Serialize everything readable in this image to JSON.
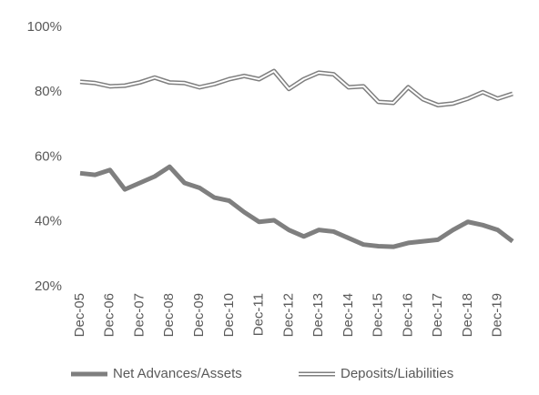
{
  "chart_data": {
    "type": "line",
    "categories": [
      "Dec-05",
      null,
      "Dec-06",
      null,
      "Dec-07",
      null,
      "Dec-08",
      null,
      "Dec-09",
      null,
      "Dec-10",
      null,
      "Dec-11",
      null,
      "Dec-12",
      null,
      "Dec-13",
      null,
      "Dec-14",
      null,
      "Dec-15",
      null,
      "Dec-16",
      null,
      "Dec-17",
      null,
      "Dec-18",
      null,
      "Dec-19",
      null
    ],
    "series": [
      {
        "name": "Net Advances/Assets",
        "color": "#7f7f7f",
        "line_style": "solid",
        "values": [
          55,
          54.5,
          56,
          50,
          52,
          54,
          57,
          52,
          50.5,
          47.5,
          46.5,
          43,
          40,
          40.5,
          37.5,
          35.5,
          37.5,
          37,
          35,
          33,
          32.5,
          32.3,
          33.5,
          34,
          34.5,
          37.5,
          40,
          39,
          37.5,
          34
        ]
      },
      {
        "name": "Deposits/Liabilities",
        "color": "#7f7f7f",
        "line_style": "double",
        "values": [
          83.2,
          82.8,
          81.8,
          82,
          83,
          84.5,
          83,
          82.8,
          81.5,
          82.5,
          84,
          85,
          84,
          86.5,
          81,
          84,
          86,
          85.5,
          81.5,
          81.8,
          77,
          76.7,
          81.5,
          77.8,
          76,
          76.5,
          78,
          80,
          78,
          79.5
        ]
      }
    ],
    "ylim": [
      20,
      100
    ],
    "yticks": [
      {
        "value": 20,
        "label": "20%"
      },
      {
        "value": 40,
        "label": "40%"
      },
      {
        "value": 60,
        "label": "60%"
      },
      {
        "value": 80,
        "label": "80%"
      },
      {
        "value": 100,
        "label": "100%"
      }
    ],
    "grid": false
  }
}
